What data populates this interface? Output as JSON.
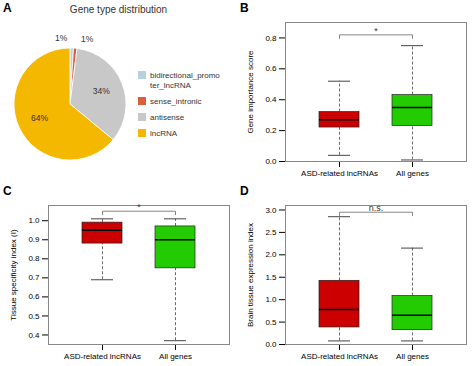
{
  "chart_data": [
    {
      "type": "pie",
      "panel_label": "A",
      "title": "Gene type distribution",
      "categories": [
        "bidirectional_promo\nter_lncRNA",
        "sense_intronic",
        "antisense",
        "lncRNA"
      ],
      "values": [
        1,
        1,
        34,
        64
      ],
      "value_labels": [
        "1%",
        "1%",
        "34%",
        "64%"
      ],
      "data_labels": true,
      "colors": [
        "#b8cfe0",
        "#d9603a",
        "#c8c8c8",
        "#f5b800"
      ],
      "legend": "right"
    },
    {
      "type": "box",
      "panel_label": "B",
      "ylabel": "Gene importance score",
      "categories": [
        "ASD-related lncRNAs",
        "All genes"
      ],
      "colors": [
        "#cc0000",
        "#22cc00"
      ],
      "q1": [
        0.22,
        0.23
      ],
      "median": [
        0.27,
        0.35
      ],
      "q3": [
        0.32,
        0.43
      ],
      "whisker_low": [
        0.04,
        0.01
      ],
      "whisker_high": [
        0.52,
        0.75
      ],
      "ylim": [
        0.0,
        0.9
      ],
      "yticks": [
        {
          "value": 0.0,
          "label": "0.0"
        },
        0.2,
        0.4,
        0.6,
        0.8
      ],
      "annotations": [
        {
          "text": "*",
          "y": 0.82
        }
      ]
    },
    {
      "type": "box",
      "panel_label": "C",
      "ylabel": "Tissue specificity index (I)",
      "categories": [
        "ASD-related lncRNAs",
        "All genes"
      ],
      "colors": [
        "#cc0000",
        "#22cc00"
      ],
      "q1": [
        0.88,
        0.75
      ],
      "median": [
        0.95,
        0.9
      ],
      "q3": [
        0.99,
        0.97
      ],
      "whisker_low": [
        0.69,
        0.37
      ],
      "whisker_high": [
        1.01,
        1.01
      ],
      "ylim": [
        0.35,
        1.08
      ],
      "yticks": [
        0.4,
        0.5,
        0.6,
        0.7,
        0.8,
        0.9,
        {
          "value": 1.0,
          "label": "1.0"
        }
      ],
      "annotations": [
        {
          "text": "*",
          "y": 1.05
        }
      ]
    },
    {
      "type": "box",
      "panel_label": "D",
      "ylabel": "Brain tissue expression index",
      "categories": [
        "ASD-related lncRNAs",
        "All genes"
      ],
      "colors": [
        "#cc0000",
        "#22cc00"
      ],
      "q1": [
        0.38,
        0.32
      ],
      "median": [
        0.78,
        0.65
      ],
      "q3": [
        1.42,
        1.08
      ],
      "whisker_low": [
        0.08,
        0.08
      ],
      "whisker_high": [
        2.85,
        2.15
      ],
      "ylim": [
        0.0,
        3.1
      ],
      "yticks": [
        {
          "value": 0.0,
          "label": "0.0"
        },
        0.5,
        {
          "value": 1.0,
          "label": "1.0"
        },
        1.5,
        {
          "value": 2.0,
          "label": "2.0"
        },
        2.5,
        {
          "value": 3.0,
          "label": "3.0"
        }
      ],
      "annotations": [
        {
          "text": "n.s.",
          "y": 2.95
        }
      ]
    }
  ]
}
